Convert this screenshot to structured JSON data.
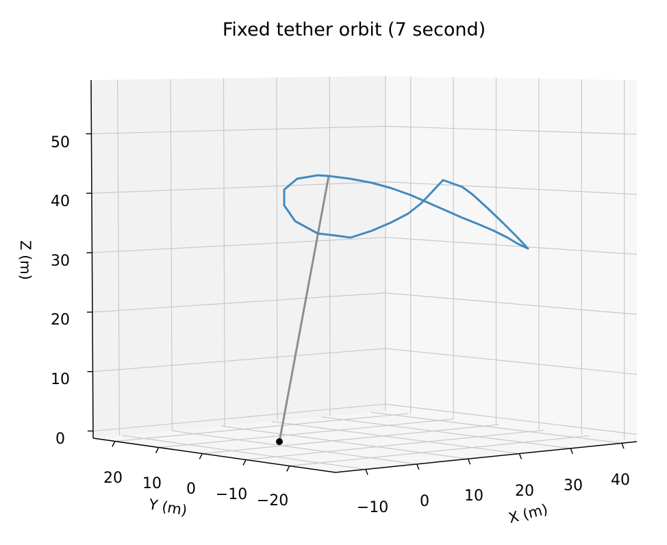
{
  "chart_data": {
    "type": "line3d",
    "title": "Fixed tether orbit (7 second)",
    "xlabel": "X (m)",
    "ylabel": "Y (m)",
    "zlabel": "Z (m)",
    "x_ticks": [
      "−10",
      "0",
      "10",
      "20",
      "30",
      "40"
    ],
    "y_ticks": [
      "20",
      "10",
      "0",
      "−10",
      "−20"
    ],
    "z_ticks": [
      "0",
      "10",
      "20",
      "30",
      "40",
      "50"
    ],
    "grid": true,
    "colors": {
      "orbit": "#4189bf",
      "tether": "#8e8e8e",
      "anchor": "#000000",
      "grid": "#c8c8c8",
      "pane_back": "#f2f2f2",
      "pane_right": "#f7f7f7",
      "pane_floor": "#f6f6f6"
    },
    "series": [
      {
        "kind": "orbit",
        "screen_path": [
          [
            480,
            257
          ],
          [
            511,
            261
          ],
          [
            543,
            267
          ],
          [
            572,
            275
          ],
          [
            600,
            285
          ],
          [
            625,
            296
          ],
          [
            650,
            307
          ],
          [
            675,
            318
          ],
          [
            700,
            328
          ],
          [
            721,
            337
          ],
          [
            741,
            347
          ],
          [
            756,
            356
          ],
          [
            771,
            363
          ],
          [
            754,
            345
          ],
          [
            735,
            326
          ],
          [
            713,
            305
          ],
          [
            690,
            284
          ],
          [
            675,
            273
          ],
          [
            647,
            263
          ],
          [
            632,
            279
          ],
          [
            615,
            297
          ],
          [
            596,
            312
          ],
          [
            571,
            325
          ],
          [
            543,
            337
          ],
          [
            512,
            347
          ],
          [
            490,
            344
          ],
          [
            464,
            341
          ],
          [
            431,
            323
          ],
          [
            415,
            300
          ],
          [
            415,
            277
          ],
          [
            434,
            261
          ],
          [
            464,
            256
          ],
          [
            480,
            257
          ]
        ]
      },
      {
        "kind": "tether",
        "screen_path": [
          [
            408,
            645
          ],
          [
            480,
            257
          ]
        ]
      }
    ],
    "anchor_point": [
      0,
      0,
      0
    ]
  }
}
